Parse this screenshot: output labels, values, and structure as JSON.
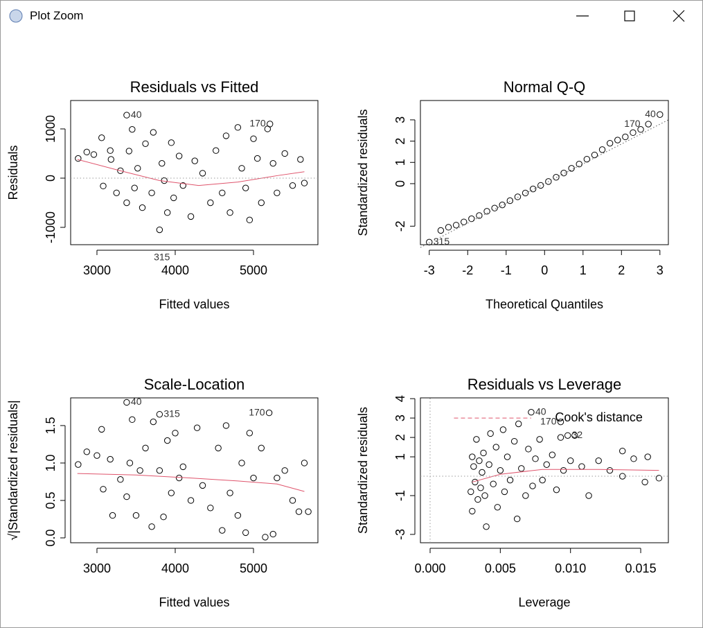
{
  "window": {
    "title": "Plot Zoom"
  },
  "chart_data": [
    {
      "type": "scatter",
      "title": "Residuals vs Fitted",
      "x_label": "Fitted values",
      "y_label": "Residuals",
      "xlim": [
        2664,
        5823
      ],
      "ylim": [
        -1352,
        1577
      ],
      "xticks": [
        3000,
        4000,
        5000
      ],
      "yticks": [
        -1000,
        0,
        1000
      ],
      "series": [
        {
          "kind": "points",
          "color": "#000000",
          "x": [
            2760,
            2870,
            2960,
            3060,
            3080,
            3170,
            3180,
            3250,
            3300,
            3380,
            3410,
            3450,
            3480,
            3520,
            3580,
            3620,
            3700,
            3720,
            3800,
            3830,
            3860,
            3900,
            3950,
            3980,
            4050,
            4100,
            4200,
            4250,
            4350,
            4450,
            4520,
            4600,
            4650,
            4700,
            4800,
            4850,
            4900,
            4950,
            5000,
            5050,
            5100,
            5180,
            5250,
            5300,
            5400,
            5500,
            5600,
            5650,
            3380,
            5210
          ],
          "values": [
            400,
            530,
            480,
            820,
            -160,
            560,
            380,
            -300,
            150,
            -500,
            550,
            990,
            -200,
            200,
            -600,
            700,
            -300,
            930,
            -1050,
            300,
            -50,
            -700,
            720,
            -400,
            450,
            -150,
            -780,
            350,
            100,
            -500,
            560,
            -300,
            860,
            -700,
            1030,
            200,
            -200,
            -850,
            800,
            400,
            -500,
            1000,
            300,
            -300,
            500,
            -150,
            380,
            -100,
            1280,
            1100
          ]
        },
        {
          "kind": "line",
          "color": "#df536b",
          "x": [
            2750,
            3300,
            3800,
            4300,
            4800,
            5300,
            5650
          ],
          "values": [
            380,
            150,
            -50,
            -150,
            -80,
            50,
            130
          ]
        },
        {
          "kind": "dotted",
          "color": "#999999",
          "x": [
            2664,
            5823
          ],
          "values": [
            0,
            0
          ]
        }
      ],
      "annotations": [
        {
          "text": "40",
          "x": 3380,
          "y": 1280,
          "side": "right"
        },
        {
          "text": "170",
          "x": 5210,
          "y": 1100,
          "side": "left"
        },
        {
          "text": "315",
          "x": 3830,
          "y": -1620,
          "side": "center"
        }
      ]
    },
    {
      "type": "scatter",
      "title": "Normal Q-Q",
      "x_label": "Theoretical Quantiles",
      "y_label": "Standardized residuals",
      "xlim": [
        -3.23,
        3.22
      ],
      "ylim": [
        -2.87,
        3.91
      ],
      "xticks": [
        -3,
        -2,
        -1,
        0,
        1,
        2,
        3
      ],
      "yticks": [
        -2,
        0,
        1,
        2,
        3
      ],
      "series": [
        {
          "kind": "points",
          "color": "#000000",
          "x": [
            -3,
            -2.7,
            -2.5,
            -2.3,
            -2.1,
            -1.9,
            -1.7,
            -1.5,
            -1.3,
            -1.1,
            -0.9,
            -0.7,
            -0.5,
            -0.3,
            -0.1,
            0.1,
            0.3,
            0.5,
            0.7,
            0.9,
            1.1,
            1.3,
            1.5,
            1.7,
            1.9,
            2.1,
            2.3,
            2.5,
            2.7,
            3
          ],
          "values": [
            -2.75,
            -2.2,
            -2.05,
            -1.95,
            -1.8,
            -1.65,
            -1.5,
            -1.3,
            -1.15,
            -1,
            -0.8,
            -0.62,
            -0.44,
            -0.25,
            -0.08,
            0.1,
            0.3,
            0.5,
            0.72,
            0.92,
            1.15,
            1.35,
            1.6,
            1.9,
            2.05,
            2.2,
            2.4,
            2.55,
            2.8,
            3.25
          ]
        },
        {
          "kind": "dotted",
          "color": "#555555",
          "x": [
            -3.23,
            3.22
          ],
          "values": [
            -3,
            3
          ]
        }
      ],
      "annotations": [
        {
          "text": "315",
          "x": -3,
          "y": -2.75,
          "side": "right"
        },
        {
          "text": "170",
          "x": 2.6,
          "y": 2.8,
          "side": "left"
        },
        {
          "text": "40",
          "x": 3,
          "y": 3.25,
          "side": "left"
        }
      ]
    },
    {
      "type": "scatter",
      "title": "Scale-Location",
      "x_label": "Fitted values",
      "y_label": "√|Standardized residuals|",
      "xlim": [
        2664,
        5823
      ],
      "ylim": [
        -0.065,
        1.87
      ],
      "xticks": [
        3000,
        4000,
        5000
      ],
      "yticks": [
        {
          "value": 0,
          "label": "0.0"
        },
        0.5,
        {
          "value": 1,
          "label": "1.0"
        },
        1.5
      ],
      "series": [
        {
          "kind": "points",
          "color": "#000000",
          "x": [
            2760,
            2870,
            3000,
            3060,
            3080,
            3170,
            3200,
            3300,
            3380,
            3420,
            3450,
            3500,
            3550,
            3620,
            3700,
            3720,
            3800,
            3850,
            3900,
            3950,
            4000,
            4050,
            4100,
            4200,
            4280,
            4350,
            4450,
            4550,
            4600,
            4650,
            4700,
            4800,
            4850,
            4900,
            4950,
            5000,
            5100,
            5150,
            5250,
            5300,
            5400,
            5500,
            5580,
            5650,
            5700,
            3380,
            3800,
            5200
          ],
          "values": [
            0.98,
            1.15,
            1.1,
            1.45,
            0.65,
            1.05,
            0.3,
            0.78,
            0.55,
            1,
            1.58,
            0.3,
            0.9,
            1.2,
            0.15,
            1.55,
            0.9,
            0.28,
            1.3,
            0.6,
            1.4,
            0.8,
            0.95,
            0.5,
            1.47,
            0.7,
            0.4,
            1.2,
            0.1,
            1.5,
            0.6,
            0.3,
            1,
            0.07,
            1.4,
            0.8,
            1.2,
            0.01,
            0.05,
            0.8,
            0.9,
            0.5,
            0.35,
            1,
            0.35,
            1.81,
            1.65,
            1.67
          ]
        },
        {
          "kind": "line",
          "color": "#df536b",
          "x": [
            2750,
            3500,
            4200,
            4800,
            5300,
            5650
          ],
          "values": [
            0.86,
            0.84,
            0.8,
            0.76,
            0.72,
            0.62
          ]
        }
      ],
      "annotations": [
        {
          "text": "40",
          "x": 3380,
          "y": 1.81,
          "side": "right"
        },
        {
          "text": "315",
          "x": 3800,
          "y": 1.65,
          "side": "right"
        },
        {
          "text": "170",
          "x": 5200,
          "y": 1.67,
          "side": "left"
        }
      ]
    },
    {
      "type": "scatter",
      "title": "Residuals vs Leverage",
      "x_label": "Leverage",
      "y_label": "Standardized residuals",
      "xlim": [
        -0.00069,
        0.01697
      ],
      "ylim": [
        -3.43,
        4.04
      ],
      "xticks": [
        {
          "value": 0,
          "label": "0.000"
        },
        {
          "value": 0.005,
          "label": "0.005"
        },
        {
          "value": 0.01,
          "label": "0.010"
        },
        {
          "value": 0.015,
          "label": "0.015"
        }
      ],
      "yticks": [
        -3,
        -1,
        1,
        2,
        3,
        4
      ],
      "series": [
        {
          "kind": "points",
          "color": "#000000",
          "x": [
            0.0029,
            0.003,
            0.003,
            0.0031,
            0.0032,
            0.0033,
            0.0034,
            0.0035,
            0.0036,
            0.0037,
            0.0038,
            0.0039,
            0.004,
            0.0042,
            0.0043,
            0.0045,
            0.0047,
            0.0048,
            0.005,
            0.0052,
            0.0053,
            0.0055,
            0.0057,
            0.006,
            0.0062,
            0.0063,
            0.0065,
            0.0068,
            0.007,
            0.0073,
            0.0075,
            0.0078,
            0.008,
            0.0083,
            0.0087,
            0.009,
            0.0093,
            0.0095,
            0.01,
            0.0103,
            0.0108,
            0.0113,
            0.012,
            0.0128,
            0.0137,
            0.0137,
            0.0145,
            0.0153,
            0.0155,
            0.0163,
            0.0072,
            0.0093,
            0.0098
          ],
          "values": [
            -0.8,
            1,
            -1.8,
            0.5,
            -0.3,
            1.9,
            -1.2,
            0.8,
            -0.6,
            0.2,
            1.2,
            -1,
            -2.6,
            0.6,
            2.2,
            -0.4,
            1.5,
            -1.6,
            0.3,
            2.4,
            -0.8,
            1,
            -0.2,
            1.8,
            -2.2,
            2.7,
            0.4,
            -1,
            1.4,
            -0.5,
            0.9,
            1.9,
            -0.2,
            0.6,
            1.1,
            -0.7,
            2,
            0.3,
            0.8,
            2.1,
            0.5,
            -1,
            0.8,
            0.3,
            1.3,
            0,
            0.9,
            -0.3,
            1,
            -0.1,
            3.3,
            2.8,
            2.1
          ]
        },
        {
          "kind": "line",
          "color": "#df536b",
          "x": [
            0.003,
            0.005,
            0.008,
            0.012,
            0.0163
          ],
          "values": [
            -0.3,
            0.1,
            0.35,
            0.35,
            0.3
          ]
        },
        {
          "kind": "dashed",
          "color": "#df536b",
          "x": [
            0.0017,
            0.0072
          ],
          "values": [
            3,
            3
          ]
        },
        {
          "kind": "dotted",
          "color": "#999999",
          "x": [
            -0.00069,
            0.01697
          ],
          "values": [
            0,
            0
          ]
        },
        {
          "kind": "dotted",
          "color": "#999999",
          "x": [
            0,
            0
          ],
          "values": [
            -3.43,
            4.04
          ]
        }
      ],
      "annotations": [
        {
          "text": "40",
          "x": 0.0072,
          "y": 3.3,
          "side": "right"
        },
        {
          "text": "170",
          "x": 0.0093,
          "y": 2.8,
          "side": "left"
        },
        {
          "text": "32",
          "x": 0.0098,
          "y": 2.1,
          "side": "right"
        },
        {
          "text": "Cook's distance",
          "x": 0.0089,
          "y": 3.0,
          "side": "legend"
        }
      ]
    }
  ]
}
